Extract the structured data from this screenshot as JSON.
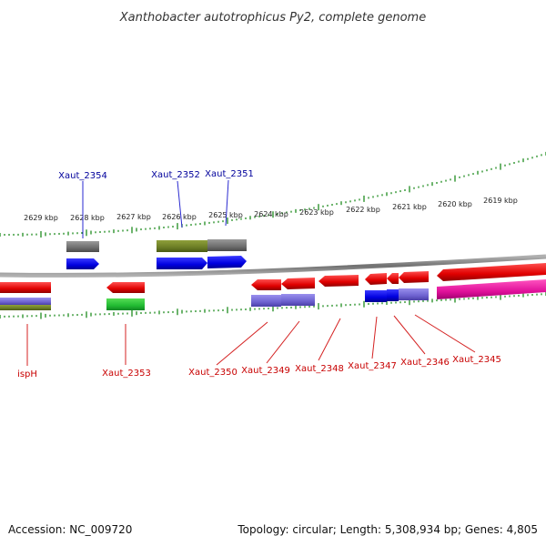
{
  "title": "Xanthobacter autotrophicus Py2, complete genome",
  "footer": {
    "accession": "Accession: NC_009720",
    "summary": "Topology: circular; Length: 5,308,934 bp; Genes: 4,805"
  },
  "scale_labels": [
    "2629 kbp",
    "2628 kbp",
    "2627 kbp",
    "2626 kbp",
    "2625 kbp",
    "2624 kbp",
    "2623 kbp",
    "2622 kbp",
    "2621 kbp",
    "2620 kbp",
    "2619 kbp"
  ],
  "gene_labels_top": [
    "Xaut_2354",
    "Xaut_2352",
    "Xaut_2351"
  ],
  "gene_labels_bottom": [
    "ispH",
    "Xaut_2353",
    "Xaut_2350",
    "Xaut_2349",
    "Xaut_2348",
    "Xaut_2347",
    "Xaut_2346",
    "Xaut_2345"
  ],
  "colors": {
    "forward_cds": "#0a0adc",
    "reverse_cds": "#e00000",
    "label_blue": "#00009c",
    "label_red": "#c80000",
    "tick_green": "#1e8c1e",
    "backbone": "#808080",
    "olive": "#6b7d25",
    "gray": "#777777",
    "lavender": "#7b6fd8",
    "green": "#22bb33",
    "magenta": "#e0109a"
  }
}
